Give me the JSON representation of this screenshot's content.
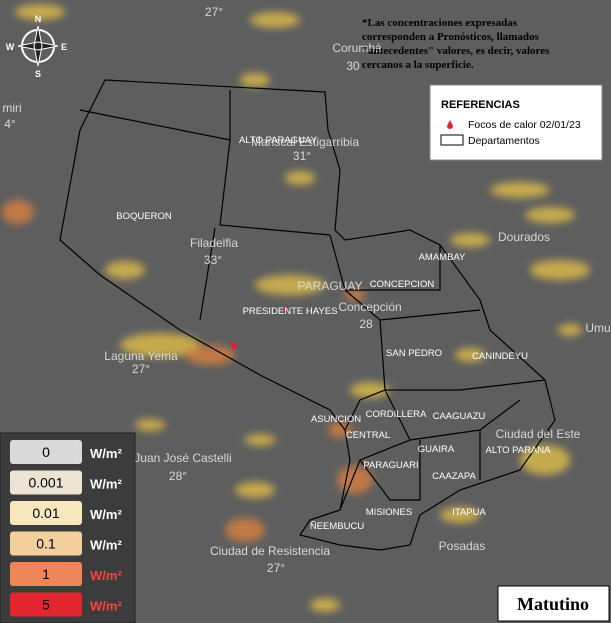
{
  "note": [
    "*Las concentraciones expresadas",
    "corresponden a Pronósticos, llamados",
    "\"antecedentes\" valores, es decir, valores",
    "cercanos a la superficie."
  ],
  "compass": {
    "n": "N",
    "s": "S",
    "e": "E",
    "w": "W"
  },
  "references": {
    "title": "REFERENCIAS",
    "fires": "Focos de calor 02/01/23",
    "departments": "Departamentos"
  },
  "departments": [
    "ALTO PARAGUAY",
    "BOQUERON",
    "PRESIDENTE HAYES",
    "CONCEPCION",
    "AMAMBAY",
    "SAN PEDRO",
    "CANINDEYU",
    "CORDILLERA",
    "CAAGUAZU",
    "CENTRAL",
    "ASUNCION",
    "GUAIRA",
    "ALTO PARANA",
    "PARAGUARI",
    "CAAZAPA",
    "ITAPUA",
    "MISIONES",
    "ÑEEMBUCU"
  ],
  "basemap": [
    "27°",
    "Corumbá",
    "30",
    "miri",
    "4°",
    "Mariscal Estigarribia",
    "31°",
    "Filadelfia",
    "33°",
    "PARAGUAY",
    "Concepción",
    "28",
    "Dourados",
    "Laguna Yema",
    "27°",
    "Umu",
    "Ciudad del Este",
    "Juan José Castelli",
    "28°",
    "Ciudad de Resistencia",
    "27°",
    "Posadas"
  ],
  "scale": [
    {
      "value": "0",
      "unit": "W/m²"
    },
    {
      "value": "0.001",
      "unit": "W/m²"
    },
    {
      "value": "0.01",
      "unit": "W/m²"
    },
    {
      "value": "0.1",
      "unit": "W/m²"
    },
    {
      "value": "1",
      "unit": "W/m²"
    },
    {
      "value": "5",
      "unit": "W/m²"
    }
  ],
  "period": "Matutino"
}
